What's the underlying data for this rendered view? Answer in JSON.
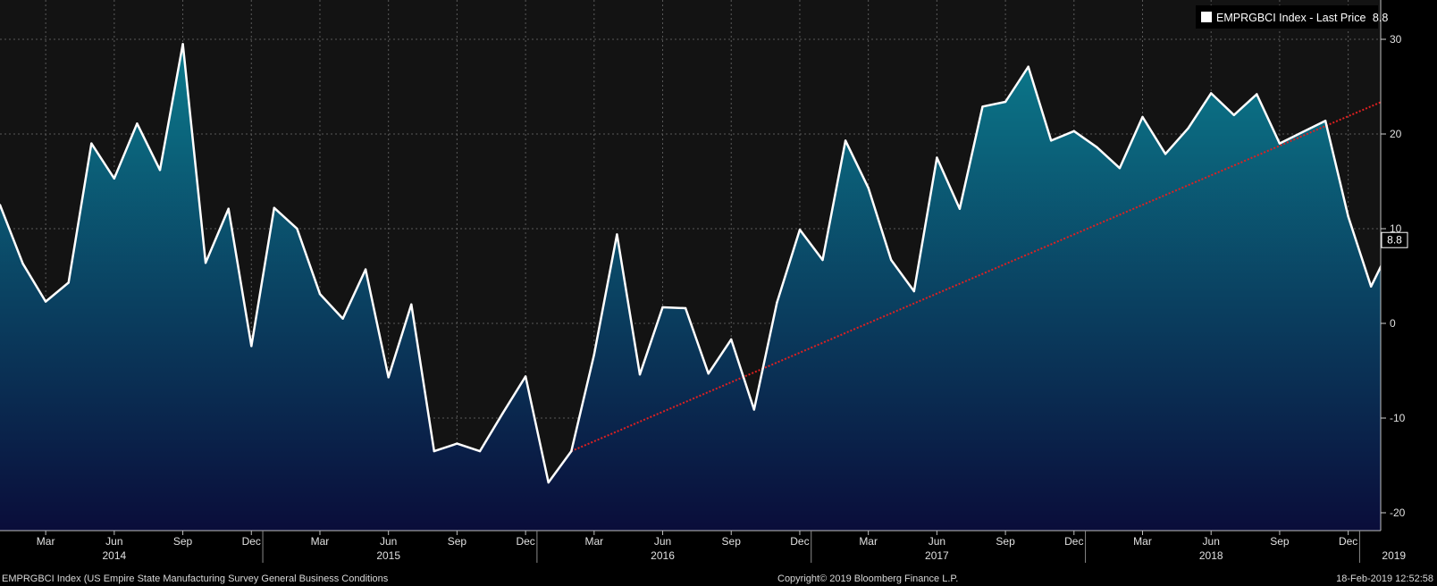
{
  "chart_data": {
    "type": "area",
    "series": [
      {
        "name": "EMPRGBCI Index - Last Price 8.8",
        "ticker": "EMPRGBCI Index",
        "legend_label": "EMPRGBCI Index - Last Price",
        "last_value_text": "8.8",
        "dates": [
          "2014-01",
          "2014-02",
          "2014-03",
          "2014-04",
          "2014-05",
          "2014-06",
          "2014-07",
          "2014-08",
          "2014-09",
          "2014-10",
          "2014-11",
          "2014-12",
          "2015-01",
          "2015-02",
          "2015-03",
          "2015-04",
          "2015-05",
          "2015-06",
          "2015-07",
          "2015-08",
          "2015-09",
          "2015-10",
          "2015-11",
          "2015-12",
          "2016-01",
          "2016-02",
          "2016-03",
          "2016-04",
          "2016-05",
          "2016-06",
          "2016-07",
          "2016-08",
          "2016-09",
          "2016-10",
          "2016-11",
          "2016-12",
          "2017-01",
          "2017-02",
          "2017-03",
          "2017-04",
          "2017-05",
          "2017-06",
          "2017-07",
          "2017-08",
          "2017-09",
          "2017-10",
          "2017-11",
          "2017-12",
          "2018-01",
          "2018-02",
          "2018-03",
          "2018-04",
          "2018-05",
          "2018-06",
          "2018-07",
          "2018-08",
          "2018-09",
          "2018-10",
          "2018-11",
          "2018-12",
          "2019-01",
          "2019-02"
        ],
        "values": [
          12.5,
          6.3,
          2.3,
          4.3,
          19.0,
          15.3,
          21.1,
          16.2,
          29.5,
          6.4,
          12.1,
          -2.4,
          12.2,
          10.0,
          3.1,
          0.5,
          5.7,
          -5.7,
          2.0,
          -13.5,
          -12.7,
          -13.5,
          -9.5,
          -5.6,
          -16.8,
          -13.5,
          -3.3,
          9.4,
          -5.4,
          1.7,
          1.6,
          -5.3,
          -1.7,
          -9.1,
          2.2,
          9.9,
          6.7,
          19.3,
          14.3,
          6.7,
          3.4,
          17.5,
          12.1,
          22.9,
          23.4,
          27.1,
          19.3,
          20.3,
          18.6,
          16.4,
          21.8,
          17.9,
          20.6,
          24.3,
          22.0,
          24.2,
          19.0,
          20.2,
          21.4,
          11.3,
          3.9,
          8.8
        ]
      }
    ],
    "trendline": {
      "start": {
        "date": "2016-02",
        "value": -13.5
      },
      "end": {
        "date": "2019-03",
        "value": 25.0
      },
      "color": "#e02020",
      "style": "dotted"
    },
    "y_axis": {
      "min": -22,
      "max": 33,
      "ticks": [
        30,
        20,
        10,
        0,
        -10,
        -20
      ],
      "tick_labels": [
        "30",
        "20",
        "10",
        "0",
        "-10",
        "-20"
      ],
      "side": "right"
    },
    "x_axis": {
      "start": "2014-01",
      "end": "2019-03",
      "month_ticks": [
        {
          "date": "2014-03",
          "label": "Mar"
        },
        {
          "date": "2014-06",
          "label": "Jun"
        },
        {
          "date": "2014-09",
          "label": "Sep"
        },
        {
          "date": "2014-12",
          "label": "Dec"
        },
        {
          "date": "2015-03",
          "label": "Mar"
        },
        {
          "date": "2015-06",
          "label": "Jun"
        },
        {
          "date": "2015-09",
          "label": "Sep"
        },
        {
          "date": "2015-12",
          "label": "Dec"
        },
        {
          "date": "2016-03",
          "label": "Mar"
        },
        {
          "date": "2016-06",
          "label": "Jun"
        },
        {
          "date": "2016-09",
          "label": "Sep"
        },
        {
          "date": "2016-12",
          "label": "Dec"
        },
        {
          "date": "2017-03",
          "label": "Mar"
        },
        {
          "date": "2017-06",
          "label": "Jun"
        },
        {
          "date": "2017-09",
          "label": "Sep"
        },
        {
          "date": "2017-12",
          "label": "Dec"
        },
        {
          "date": "2018-03",
          "label": "Mar"
        },
        {
          "date": "2018-06",
          "label": "Jun"
        },
        {
          "date": "2018-09",
          "label": "Sep"
        },
        {
          "date": "2018-12",
          "label": "Dec"
        }
      ],
      "year_labels": [
        {
          "date": "2014-06",
          "label": "2014"
        },
        {
          "date": "2015-06",
          "label": "2015"
        },
        {
          "date": "2016-06",
          "label": "2016"
        },
        {
          "date": "2017-06",
          "label": "2017"
        },
        {
          "date": "2018-06",
          "label": "2018"
        },
        {
          "date": "2019-02",
          "label": "2019"
        }
      ]
    },
    "grid": true,
    "legend_position": "top-right",
    "colors": {
      "background": "#131313",
      "line": "#ffffff",
      "area_top": "#0b7a8c",
      "area_bottom": "#0a0d3a",
      "grid": "#5a5a5a",
      "last_price_marker": "#f08a24"
    }
  },
  "footer": {
    "left": "EMPRGBCI Index (US Empire State Manufacturing Survey General Business Conditions",
    "center": "Copyright© 2019 Bloomberg Finance L.P.",
    "right": "18-Feb-2019 12:52:58"
  }
}
